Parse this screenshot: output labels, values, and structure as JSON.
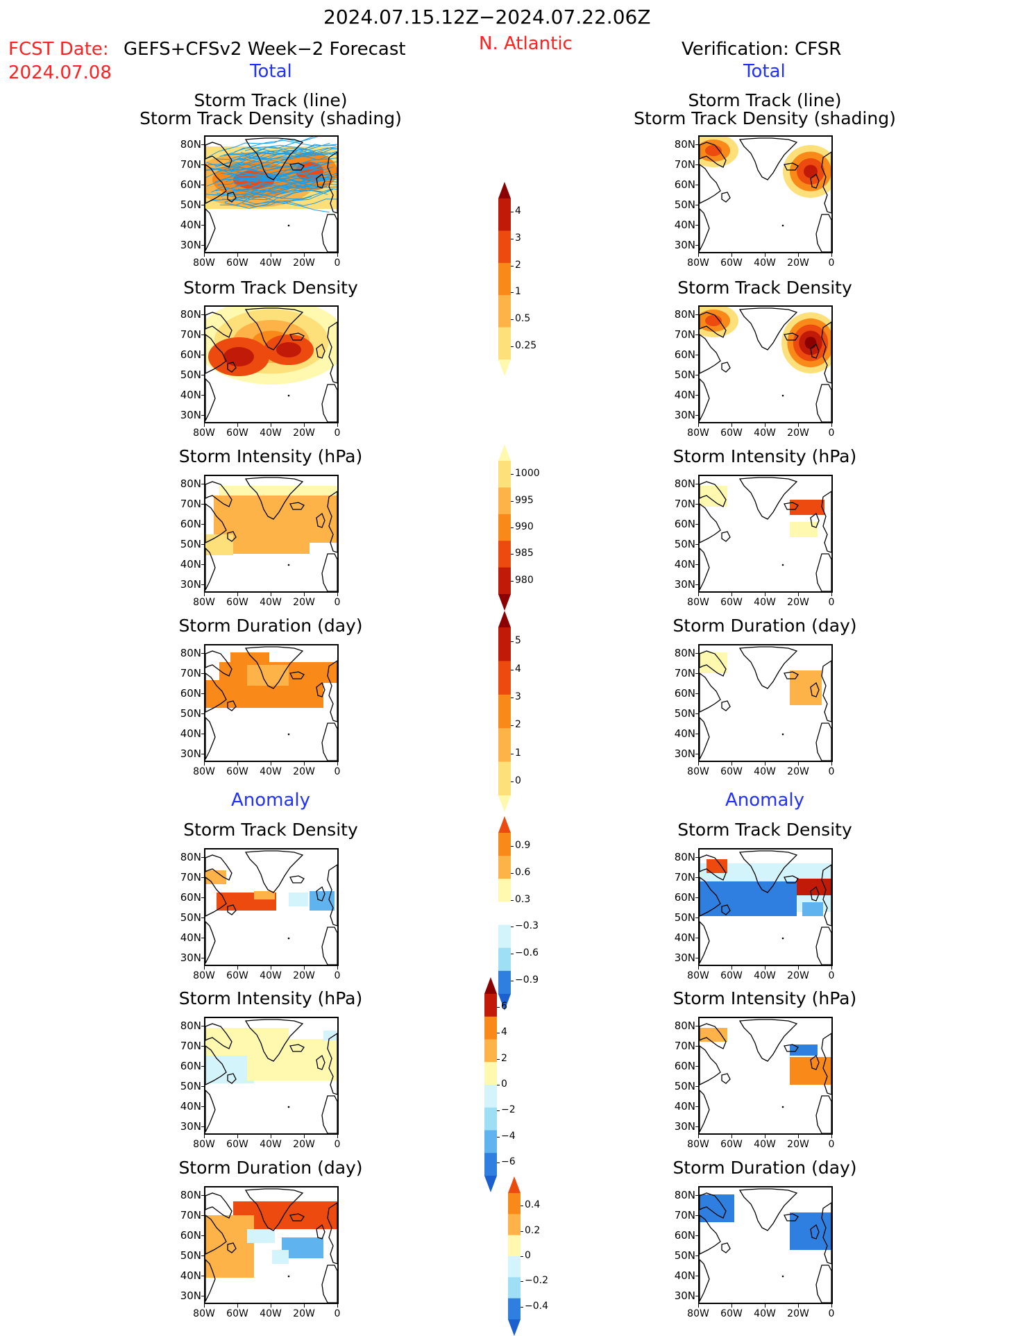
{
  "header": {
    "date_range": "2024.07.15.12Z−2024.07.22.06Z",
    "region": "N. Atlantic",
    "fcst_prefix": "FCST Date:",
    "fcst_model": "GEFS+CFSv2 Week−2 Forecast",
    "fcst_date": "2024.07.08",
    "verification": "Verification: CFSR"
  },
  "sections": {
    "total_label": "Total",
    "anomaly_label": "Anomaly"
  },
  "map_axes": {
    "lat_labels": [
      "80N",
      "70N",
      "60N",
      "50N",
      "40N",
      "30N"
    ],
    "lon_labels": [
      "80W",
      "60W",
      "40W",
      "20W",
      "0"
    ]
  },
  "panels": {
    "track_line_title_1": "Storm Track (line)",
    "track_line_title_2": "Storm Track Density (shading)",
    "density_title": "Storm Track Density",
    "intensity_title": "Storm Intensity (hPa)",
    "duration_title": "Storm Duration (day)"
  },
  "colorbars": {
    "density": [
      "4",
      "3",
      "2",
      "1",
      "0.5",
      "0.25"
    ],
    "intensity": [
      "1000",
      "995",
      "990",
      "985",
      "980"
    ],
    "duration": [
      "5",
      "4",
      "3",
      "2",
      "1",
      "0"
    ],
    "density_anom": [
      "0.9",
      "0.6",
      "0.3",
      "−0.3",
      "−0.6",
      "−0.9"
    ],
    "intensity_anom": [
      "6",
      "4",
      "2",
      "0",
      "−2",
      "−4",
      "−6"
    ],
    "duration_anom": [
      "0.4",
      "0.2",
      "0",
      "−0.2",
      "−0.4"
    ]
  },
  "colors": {
    "warm": [
      "#fff9b0",
      "#fde07a",
      "#fdb347",
      "#f98a1a",
      "#ec4a0e",
      "#c21a08",
      "#8b0000"
    ],
    "cool": [
      "#d4f4fb",
      "#9fdff5",
      "#5fb4f0",
      "#2f7fe0",
      "#1c5fcf"
    ],
    "track_line": "#1a9ee8",
    "accent_red": "#ff2020",
    "accent_blue": "#2030ff"
  }
}
